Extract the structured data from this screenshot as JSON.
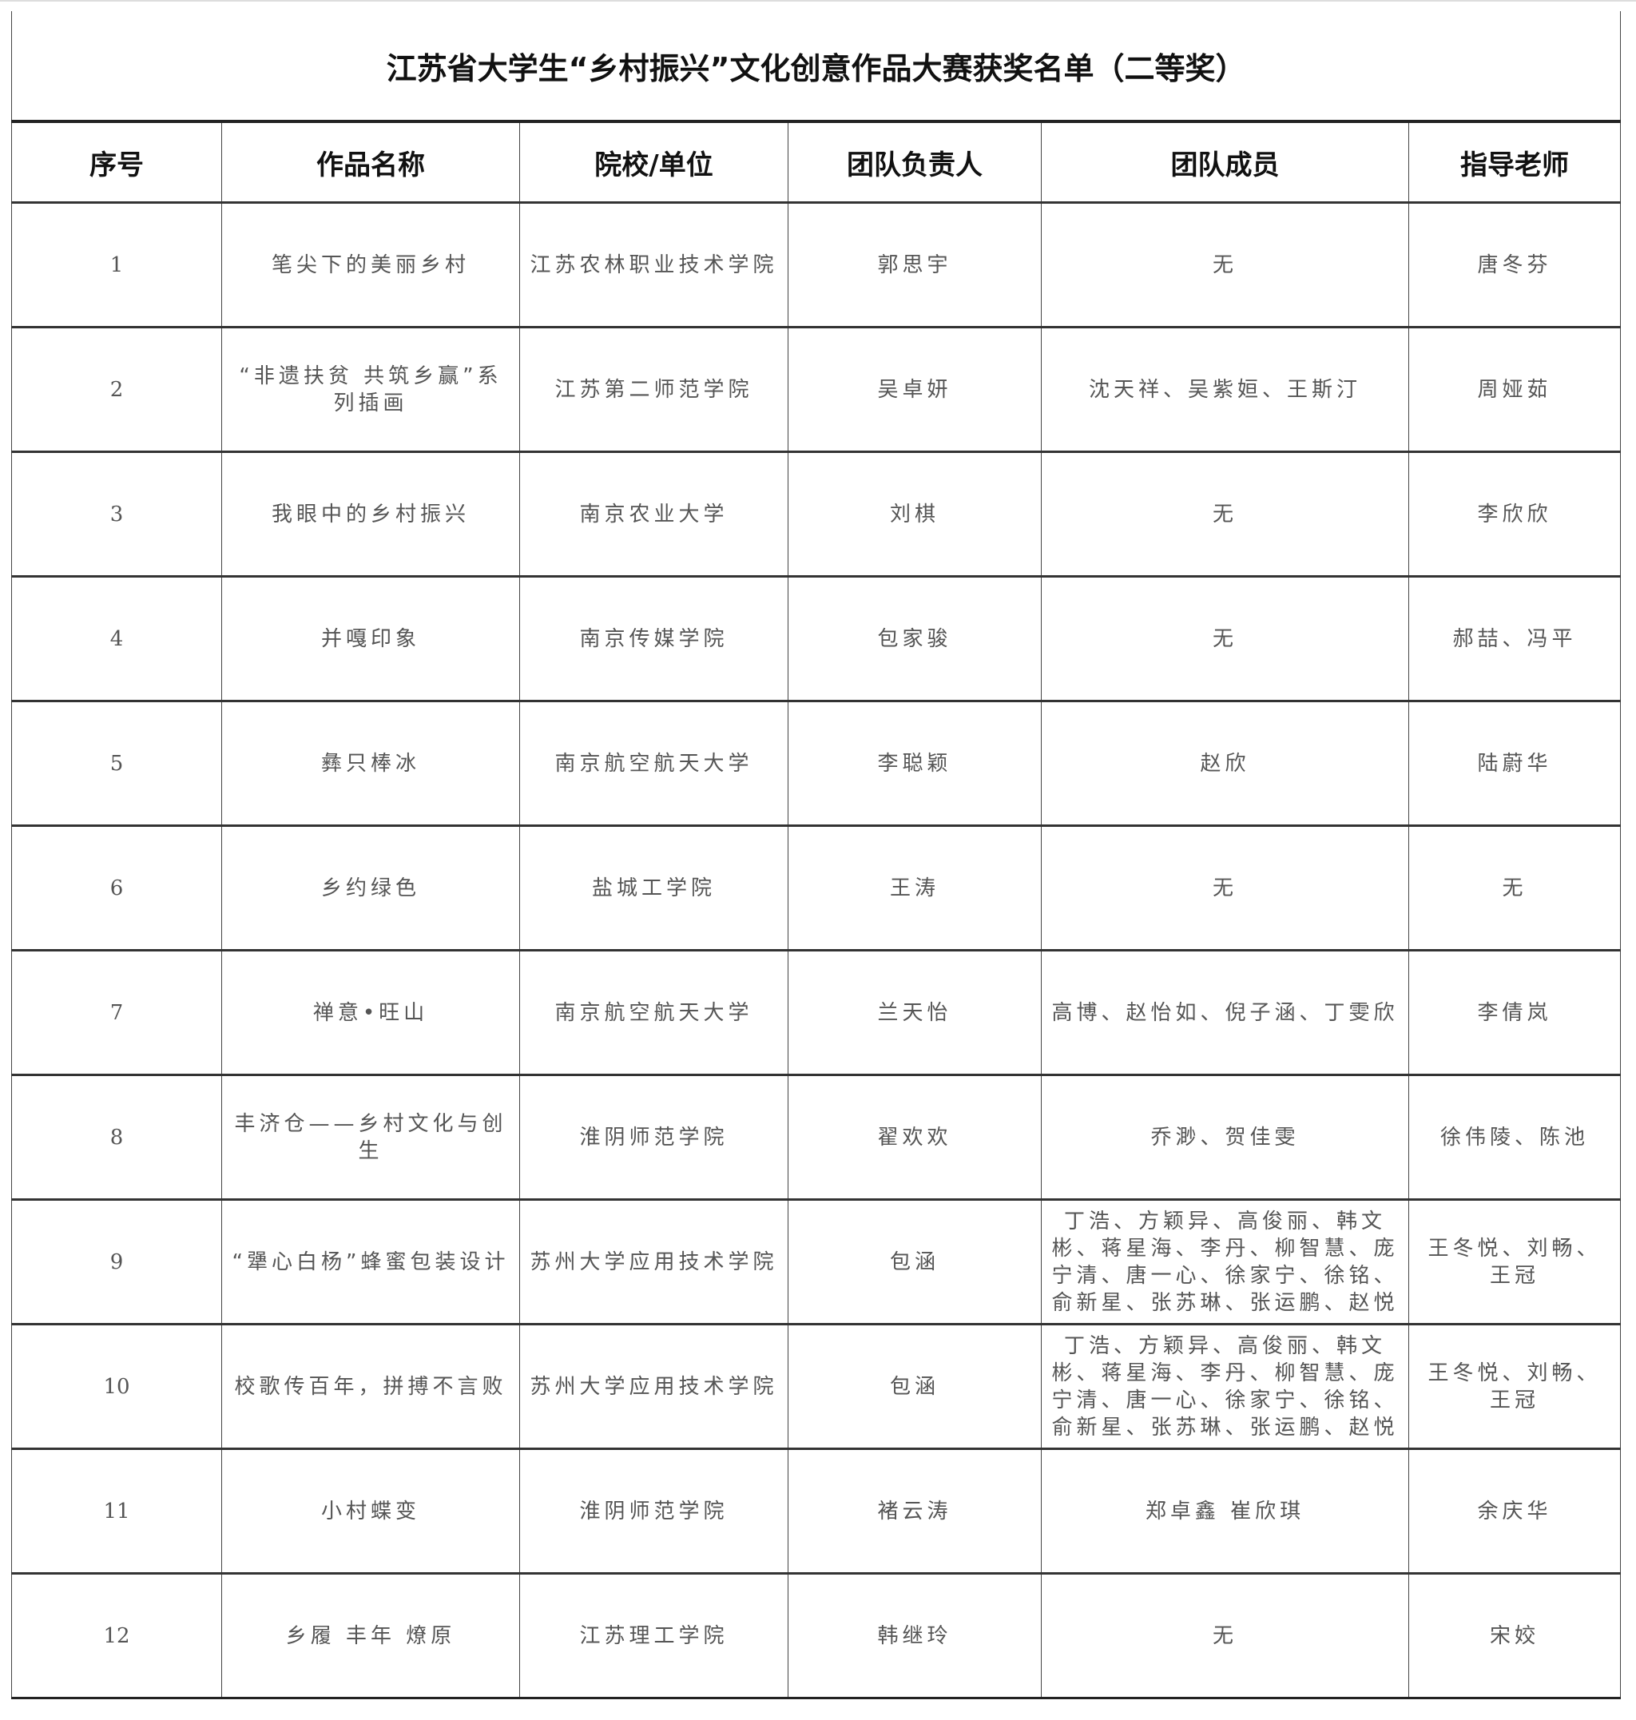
{
  "title": "江苏省大学生“乡村振兴”文化创意作品大赛获奖名单（二等奖）",
  "headers": [
    "序号",
    "作品名称",
    "院校/单位",
    "团队负责人",
    "团队成员",
    "指导老师"
  ],
  "rows": [
    [
      "1",
      "笔尖下的美丽乡村",
      "江苏农林职业技术学院",
      "郭思宇",
      "无",
      "唐冬芬"
    ],
    [
      "2",
      "“非遗扶贫 共筑乡赢”系列插画",
      "江苏第二师范学院",
      "吴卓妍",
      "沈天祥、吴紫姮、王斯汀",
      "周娅茹"
    ],
    [
      "3",
      "我眼中的乡村振兴",
      "南京农业大学",
      "刘棋",
      "无",
      "李欣欣"
    ],
    [
      "4",
      "并嘎印象",
      "南京传媒学院",
      "包家骏",
      "无",
      "郝喆、冯平"
    ],
    [
      "5",
      "彝只棒冰",
      "南京航空航天大学",
      "李聪颖",
      "赵欣",
      "陆蔚华"
    ],
    [
      "6",
      "乡约绿色",
      "盐城工学院",
      "王涛",
      "无",
      "无"
    ],
    [
      "7",
      "禅意•旺山",
      "南京航空航天大学",
      "兰天怡",
      "高博、赵怡如、倪子涵、丁雯欣",
      "李倩岚"
    ],
    [
      "8",
      "丰济仓——乡村文化与创生",
      "淮阴师范学院",
      "翟欢欢",
      "乔渺、贺佳雯",
      "徐伟陵、陈池"
    ],
    [
      "9",
      "“犟心白杨”蜂蜜包装设计",
      "苏州大学应用技术学院",
      "包涵",
      "丁浩、方颖异、高俊丽、韩文彬、蒋星海、李丹、柳智慧、庞宁清、唐一心、徐家宁、徐铭、俞新星、张苏琳、张运鹏、赵悦",
      "王冬悦、刘畅、王冠"
    ],
    [
      "10",
      "校歌传百年，拼搏不言败",
      "苏州大学应用技术学院",
      "包涵",
      "丁浩、方颖异、高俊丽、韩文彬、蒋星海、李丹、柳智慧、庞宁清、唐一心、徐家宁、徐铭、俞新星、张苏琳、张运鹏、赵悦",
      "王冬悦、刘畅、王冠"
    ],
    [
      "11",
      "小村蝶变",
      "淮阴师范学院",
      "褚云涛",
      "郑卓鑫 崔欣琪",
      "余庆华"
    ],
    [
      "12",
      "乡履 丰年 燎原",
      "江苏理工学院",
      "韩继玲",
      "无",
      "宋姣"
    ]
  ]
}
